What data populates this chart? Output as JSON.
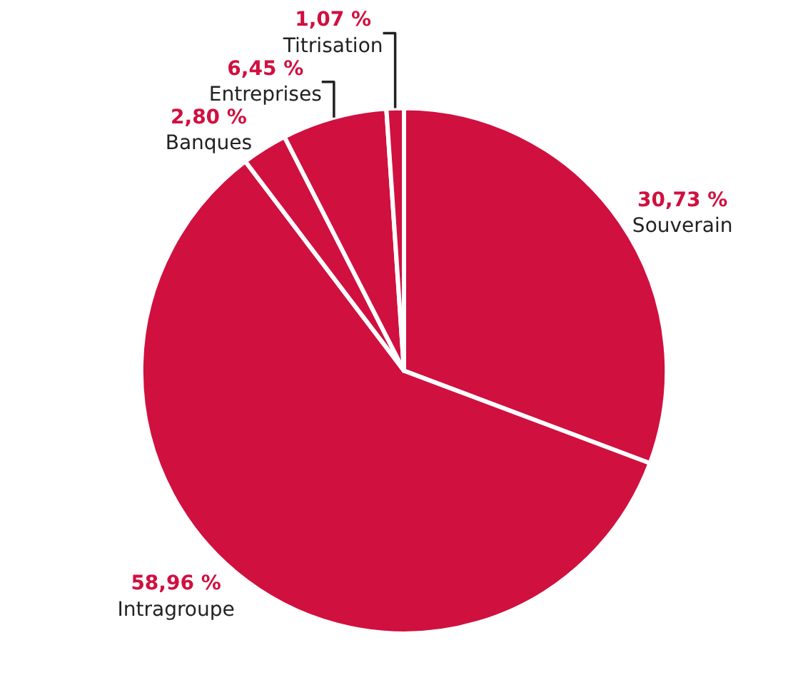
{
  "chart_data": {
    "type": "pie",
    "categories": [
      "Souverain",
      "Intragroupe",
      "Banques",
      "Entreprises",
      "Titrisation"
    ],
    "values": [
      30.73,
      58.96,
      2.8,
      6.45,
      1.07
    ],
    "value_labels": [
      "30,73 %",
      "58,96 %",
      "2,80 %",
      "6,45 %",
      "1,07 %"
    ],
    "colors": [
      "#d0103f",
      "#d0103f",
      "#d0103f",
      "#d0103f",
      "#d0103f"
    ],
    "legend": false
  }
}
